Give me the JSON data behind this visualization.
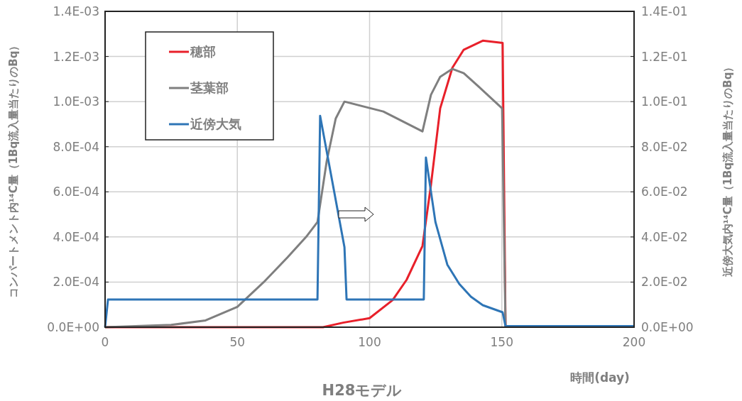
{
  "chart_data": {
    "type": "line",
    "title": "H28モデル",
    "xlabel": "時間(day)",
    "ylabel": "コンパートメント内¹⁴C量（1Bq流入量当たりのBq）",
    "y2label": "近傍大気内¹⁴C量（1Bq流入量当たりのBq）",
    "xlim": [
      0,
      200
    ],
    "xticks": [
      0,
      50,
      100,
      150,
      200
    ],
    "ylim": [
      0,
      0.0014
    ],
    "yticks": [
      {
        "value": 0,
        "label": "0.0E+00"
      },
      {
        "value": 0.0002,
        "label": "2.0E-04"
      },
      {
        "value": 0.0004,
        "label": "4.0E-04"
      },
      {
        "value": 0.0006,
        "label": "6.0E-04"
      },
      {
        "value": 0.0008,
        "label": "8.0E-04"
      },
      {
        "value": 0.001,
        "label": "1.0E-03"
      },
      {
        "value": 0.0012,
        "label": "1.2E-03"
      },
      {
        "value": 0.0014,
        "label": "1.4E-03"
      }
    ],
    "y2lim": [
      0,
      0.14
    ],
    "y2ticks": [
      {
        "value": 0,
        "label": "0.0E+00"
      },
      {
        "value": 0.02,
        "label": "2.0E-02"
      },
      {
        "value": 0.04,
        "label": "4.0E-02"
      },
      {
        "value": 0.06,
        "label": "6.0E-02"
      },
      {
        "value": 0.08,
        "label": "8.0E-02"
      },
      {
        "value": 0.1,
        "label": "1.0E-01"
      },
      {
        "value": 0.12,
        "label": "1.2E-01"
      },
      {
        "value": 0.14,
        "label": "1.4E-01"
      }
    ],
    "grid": true,
    "legend": "top left",
    "marker": "none",
    "line_style": "solid",
    "series": [
      {
        "name": "穂部",
        "color": "#e8202a",
        "x": [
          0,
          82.4,
          90,
          100,
          108.7,
          114,
          120,
          123.2,
          126.7,
          131.3,
          135.6,
          142.8,
          150.3,
          151.4,
          200
        ],
        "values": [
          0,
          0,
          2e-05,
          4e-05,
          0.00012,
          0.00021,
          0.00036,
          0.00063,
          0.00097,
          0.00115,
          0.00123,
          0.00127,
          0.00126,
          5e-06,
          5e-06
        ]
      },
      {
        "name": "茎葉部",
        "color": "#7f7f7f",
        "x": [
          0,
          25,
          38,
          50,
          60,
          69,
          76,
          80.3,
          83.8,
          87.2,
          90.5,
          105.2,
          120,
          123.2,
          126.7,
          131.3,
          135.6,
          140.9,
          150.1,
          151.4,
          200
        ],
        "values": [
          0,
          1e-05,
          3e-05,
          9e-05,
          0.0002,
          0.00031,
          0.0004,
          0.000466,
          0.000736,
          0.000925,
          0.001,
          0.000956,
          0.000868,
          0.00103,
          0.00111,
          0.001145,
          0.001126,
          0.00107,
          0.00097,
          5e-06,
          5e-06
        ]
      },
      {
        "name": "近傍大気",
        "color": "#2e75b6",
        "axis": "y2",
        "x": [
          0,
          1.1,
          80.3,
          81.3,
          90.5,
          91.3,
          120.5,
          121.3,
          124.9,
          129.4,
          133.9,
          138.3,
          142.8,
          150.3,
          151.4,
          200
        ],
        "values": [
          0,
          0.0123,
          0.0123,
          0.0937,
          0.0355,
          0.0123,
          0.0123,
          0.0752,
          0.0466,
          0.0277,
          0.0192,
          0.0135,
          0.00975,
          0.0066,
          0.0005,
          0.0005
        ]
      }
    ]
  }
}
